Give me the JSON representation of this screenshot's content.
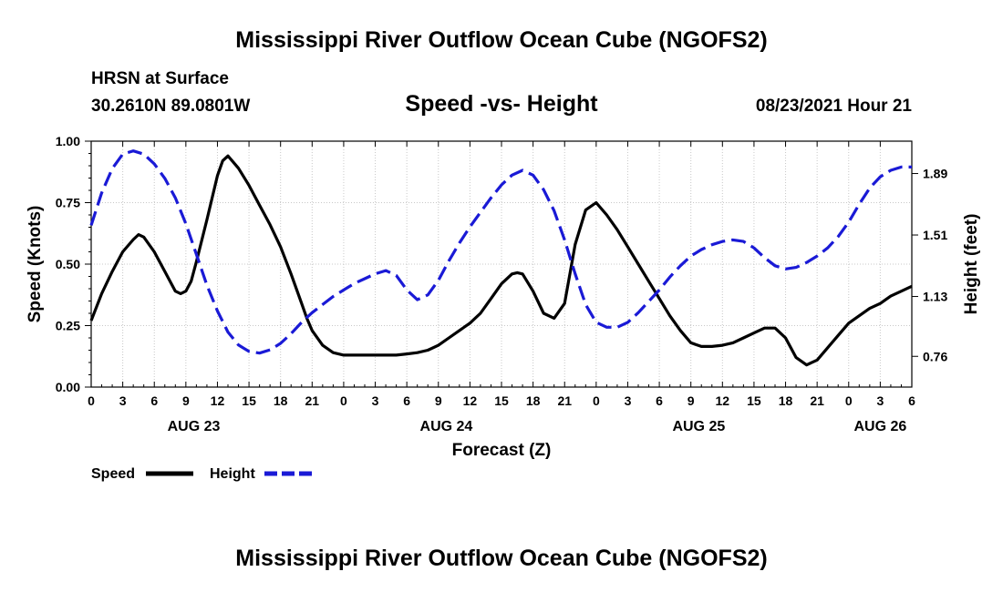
{
  "header": {
    "title": "Mississippi River Outflow Ocean Cube (NGOFS2)",
    "station_name": "HRSN at Surface",
    "coords": "30.2610N  89.0801W",
    "subtitle": "Speed -vs- Height",
    "datetime": "08/23/2021 Hour 21"
  },
  "footer": {
    "title": "Mississippi River Outflow Ocean Cube (NGOFS2)"
  },
  "chart_data": {
    "type": "line",
    "title": "Speed -vs- Height",
    "xlabel": "Forecast (Z)",
    "ylabel": "Speed (Knots)",
    "y2label": "Height (feet)",
    "x_range_hours": [
      0,
      78
    ],
    "ylim": [
      0,
      1
    ],
    "y2lim": [
      0.57,
      2.09
    ],
    "x_tick_labels": [
      "0",
      "3",
      "6",
      "9",
      "12",
      "15",
      "18",
      "21",
      "0",
      "3",
      "6",
      "9",
      "12",
      "15",
      "18",
      "21",
      "0",
      "3",
      "6",
      "9",
      "12",
      "15",
      "18",
      "21",
      "0",
      "3",
      "6"
    ],
    "y_tick_labels": [
      "0.00",
      "0.25",
      "0.50",
      "0.75",
      "1.00"
    ],
    "y2_tick_labels": [
      "0.76",
      "1.13",
      "1.51",
      "1.89"
    ],
    "day_labels": [
      {
        "label": "AUG 23",
        "hour": 9.75
      },
      {
        "label": "AUG 24",
        "hour": 33.75
      },
      {
        "label": "AUG 25",
        "hour": 57.75
      },
      {
        "label": "AUG 26",
        "hour": 75
      }
    ],
    "grid": true,
    "legend": [
      {
        "name": "Speed",
        "color": "#000000",
        "style": "solid"
      },
      {
        "name": "Height",
        "color": "#1a1ad6",
        "style": "dashed"
      }
    ],
    "series": [
      {
        "name": "Speed",
        "axis": "left",
        "color": "#000000",
        "x": [
          0,
          1,
          2,
          3,
          4,
          4.5,
          5,
          6,
          7,
          8,
          8.5,
          9,
          9.5,
          10,
          11,
          12,
          12.5,
          13,
          14,
          15,
          16,
          17,
          18,
          19,
          20,
          20.5,
          21,
          22,
          23,
          24,
          25,
          26,
          27,
          28,
          29,
          30,
          31,
          32,
          33,
          34,
          35,
          36,
          37,
          38,
          39,
          40,
          40.5,
          41,
          42,
          43,
          44,
          45,
          46,
          47,
          48,
          49,
          50,
          51,
          52,
          53,
          54,
          55,
          56,
          57,
          58,
          59,
          60,
          61,
          62,
          63,
          64,
          65,
          66,
          67,
          68,
          69,
          70,
          71,
          72,
          73,
          74,
          75,
          76,
          77,
          78
        ],
        "values": [
          0.27,
          0.38,
          0.47,
          0.55,
          0.6,
          0.62,
          0.61,
          0.55,
          0.47,
          0.39,
          0.38,
          0.39,
          0.43,
          0.51,
          0.68,
          0.86,
          0.92,
          0.94,
          0.89,
          0.82,
          0.74,
          0.66,
          0.57,
          0.46,
          0.34,
          0.28,
          0.23,
          0.17,
          0.14,
          0.13,
          0.13,
          0.13,
          0.13,
          0.13,
          0.13,
          0.135,
          0.14,
          0.15,
          0.17,
          0.2,
          0.23,
          0.26,
          0.3,
          0.36,
          0.42,
          0.46,
          0.465,
          0.46,
          0.39,
          0.3,
          0.28,
          0.34,
          0.58,
          0.72,
          0.75,
          0.7,
          0.64,
          0.57,
          0.5,
          0.43,
          0.36,
          0.29,
          0.23,
          0.18,
          0.165,
          0.165,
          0.17,
          0.18,
          0.2,
          0.22,
          0.24,
          0.24,
          0.2,
          0.12,
          0.09,
          0.11,
          0.16,
          0.21,
          0.26,
          0.29,
          0.32,
          0.34,
          0.37,
          0.39,
          0.41
        ]
      },
      {
        "name": "Height",
        "axis": "right",
        "color": "#1a1ad6",
        "x": [
          0,
          1,
          2,
          3,
          4,
          5,
          6,
          7,
          8,
          9,
          10,
          11,
          12,
          13,
          14,
          15,
          16,
          17,
          18,
          19,
          20,
          21,
          22,
          23,
          24,
          25,
          26,
          27,
          28,
          29,
          30,
          31,
          32,
          33,
          34,
          35,
          36,
          37,
          38,
          39,
          40,
          41,
          42,
          43,
          44,
          45,
          46,
          47,
          48,
          49,
          50,
          51,
          52,
          53,
          54,
          55,
          56,
          57,
          58,
          59,
          60,
          61,
          62,
          63,
          64,
          65,
          66,
          67,
          68,
          69,
          70,
          71,
          72,
          73,
          74,
          75,
          76,
          77,
          78
        ],
        "values": [
          1.57,
          1.77,
          1.92,
          2.01,
          2.03,
          2.01,
          1.95,
          1.86,
          1.74,
          1.58,
          1.39,
          1.2,
          1.04,
          0.91,
          0.83,
          0.79,
          0.78,
          0.8,
          0.84,
          0.9,
          0.97,
          1.03,
          1.08,
          1.13,
          1.17,
          1.21,
          1.24,
          1.27,
          1.29,
          1.26,
          1.17,
          1.11,
          1.14,
          1.23,
          1.35,
          1.46,
          1.56,
          1.65,
          1.74,
          1.82,
          1.88,
          1.91,
          1.88,
          1.79,
          1.66,
          1.48,
          1.27,
          1.08,
          0.97,
          0.94,
          0.94,
          0.97,
          1.03,
          1.1,
          1.17,
          1.25,
          1.32,
          1.38,
          1.42,
          1.45,
          1.47,
          1.48,
          1.47,
          1.43,
          1.37,
          1.32,
          1.3,
          1.31,
          1.34,
          1.38,
          1.43,
          1.5,
          1.59,
          1.7,
          1.8,
          1.87,
          1.91,
          1.93,
          1.93
        ]
      }
    ]
  }
}
